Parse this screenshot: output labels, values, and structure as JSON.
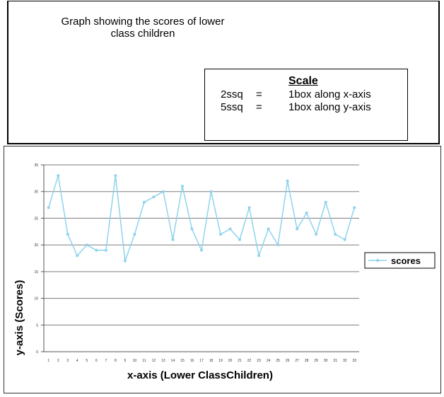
{
  "caption": {
    "line1": "Graph showing the scores of lower",
    "line2": "class children"
  },
  "scale": {
    "title": "Scale",
    "rows": [
      {
        "lhs": "2ssq",
        "eq": "=",
        "rhs": "1box along x-axis"
      },
      {
        "lhs": "5ssq",
        "eq": "=",
        "rhs": "1box along y-axis"
      }
    ]
  },
  "colors": {
    "series": "#8ed3ee",
    "grid": "#7a7a7a"
  },
  "chart_data": {
    "type": "line",
    "title": "",
    "xlabel": "x-axis (Lower ClassChildren)",
    "ylabel": "y-axis (Scores)",
    "ylim": [
      0,
      35
    ],
    "yticks": [
      0,
      5,
      10,
      15,
      20,
      25,
      30,
      35
    ],
    "grid": true,
    "legend_position": "right",
    "x": [
      1,
      2,
      3,
      4,
      5,
      6,
      7,
      8,
      9,
      10,
      11,
      12,
      13,
      14,
      15,
      16,
      17,
      18,
      19,
      20,
      21,
      22,
      23,
      24,
      25,
      26,
      27,
      28,
      29,
      30,
      31,
      32,
      33
    ],
    "series": [
      {
        "name": "scores",
        "values": [
          27,
          33,
          22,
          18,
          20,
          19,
          19,
          33,
          17,
          22,
          28,
          29,
          30,
          21,
          31,
          23,
          19,
          30,
          22,
          23,
          21,
          27,
          18,
          23,
          20,
          32,
          23,
          26,
          22,
          28,
          22,
          21,
          27
        ]
      }
    ]
  }
}
